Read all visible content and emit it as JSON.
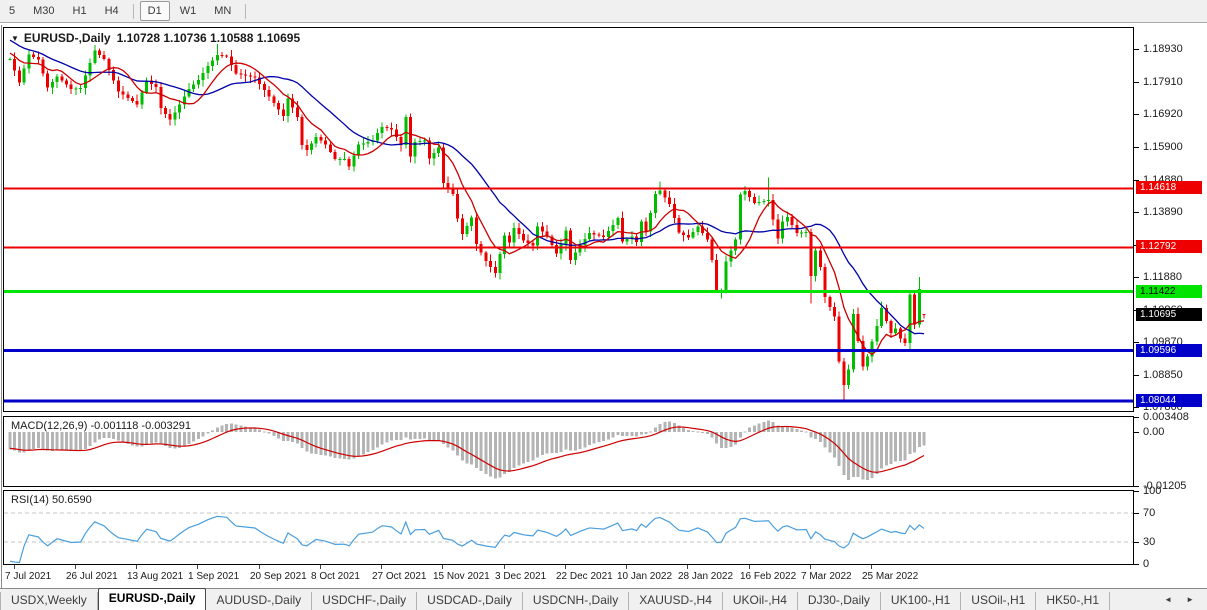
{
  "toolbar": {
    "items": [
      "5",
      "M30",
      "H1",
      "H4",
      "|",
      "D1",
      "W1",
      "MN",
      "|"
    ],
    "active": "D1"
  },
  "chart": {
    "title": {
      "dropdown_icon": "▼",
      "symbol": "EURUSD-,Daily",
      "quote": "1.10728 1.10736 1.10588 1.10695"
    },
    "colors": {
      "bull": "#00bd00",
      "bear": "#ee0000",
      "ma_fast": "#cc0000",
      "ma_slow": "#0000a8"
    },
    "ylim": [
      1.0773,
      1.1958
    ],
    "y_axis": {
      "ticks": [
        "1.18930",
        "1.17910",
        "1.16920",
        "1.15900",
        "1.14880",
        "1.13890",
        "1.12870",
        "1.11880",
        "1.10860",
        "1.09870",
        "1.08850",
        "1.07860"
      ]
    },
    "levels": [
      {
        "price": 1.14618,
        "label": "1.14618",
        "color": "#ee0000",
        "text_color": "#ffffff",
        "thickness": 2
      },
      {
        "price": 1.12792,
        "label": "1.12792",
        "color": "#ee0000",
        "text_color": "#ffffff",
        "thickness": 2
      },
      {
        "price": 1.11422,
        "label": "1.11422",
        "color": "#00e400",
        "text_color": "#000000",
        "thickness": 3
      },
      {
        "price": 1.09596,
        "label": "1.09596",
        "color": "#0000c8",
        "text_color": "#ffffff",
        "thickness": 3
      },
      {
        "price": 1.08044,
        "label": "1.08044",
        "color": "#0000c8",
        "text_color": "#ffffff",
        "thickness": 3
      }
    ],
    "current_price": {
      "value": 1.10695,
      "label": "1.10695",
      "bg": "#000000",
      "text_color": "#ffffff"
    },
    "ma": {
      "fast_period": 8,
      "slow_period": 20
    },
    "candles": {
      "count": 195,
      "warmup": {
        "bars": 30,
        "start_price": 1.206
      },
      "close_anchors": [
        [
          0,
          1.1862
        ],
        [
          2,
          1.179
        ],
        [
          4,
          1.1876
        ],
        [
          6,
          1.1861
        ],
        [
          8,
          1.1774
        ],
        [
          10,
          1.1808
        ],
        [
          13,
          1.177
        ],
        [
          15,
          1.1772
        ],
        [
          18,
          1.1888
        ],
        [
          20,
          1.1862
        ],
        [
          23,
          1.1762
        ],
        [
          27,
          1.1722
        ],
        [
          29,
          1.1795
        ],
        [
          31,
          1.1776
        ],
        [
          32,
          1.171
        ],
        [
          34,
          1.1675
        ],
        [
          35,
          1.1697
        ],
        [
          38,
          1.177
        ],
        [
          40,
          1.1797
        ],
        [
          42,
          1.184
        ],
        [
          44,
          1.1875
        ],
        [
          46,
          1.187
        ],
        [
          48,
          1.1817
        ],
        [
          52,
          1.1805
        ],
        [
          54,
          1.1766
        ],
        [
          56,
          1.1726
        ],
        [
          58,
          1.1686
        ],
        [
          59,
          1.174
        ],
        [
          61,
          1.1683
        ],
        [
          62,
          1.1596
        ],
        [
          63,
          1.158
        ],
        [
          65,
          1.1621
        ],
        [
          67,
          1.1598
        ],
        [
          69,
          1.1552
        ],
        [
          71,
          1.1553
        ],
        [
          72,
          1.153
        ],
        [
          74,
          1.1597
        ],
        [
          77,
          1.161
        ],
        [
          78,
          1.1633
        ],
        [
          79,
          1.1652
        ],
        [
          81,
          1.1644
        ],
        [
          83,
          1.1596
        ],
        [
          84,
          1.1682
        ],
        [
          85,
          1.156
        ],
        [
          86,
          1.1606
        ],
        [
          88,
          1.161
        ],
        [
          89,
          1.1554
        ],
        [
          91,
          1.1589
        ],
        [
          92,
          1.1478
        ],
        [
          94,
          1.1445
        ],
        [
          95,
          1.1368
        ],
        [
          96,
          1.132
        ],
        [
          98,
          1.1372
        ],
        [
          99,
          1.1289
        ],
        [
          101,
          1.1237
        ],
        [
          103,
          1.12
        ],
        [
          105,
          1.1316
        ],
        [
          106,
          1.1294
        ],
        [
          107,
          1.1339
        ],
        [
          109,
          1.1301
        ],
        [
          111,
          1.1285
        ],
        [
          112,
          1.1344
        ],
        [
          114,
          1.1313
        ],
        [
          116,
          1.126
        ],
        [
          117,
          1.1288
        ],
        [
          118,
          1.1331
        ],
        [
          119,
          1.124
        ],
        [
          121,
          1.1286
        ],
        [
          123,
          1.1324
        ],
        [
          126,
          1.1311
        ],
        [
          128,
          1.1348
        ],
        [
          129,
          1.137
        ],
        [
          130,
          1.1297
        ],
        [
          132,
          1.1313
        ],
        [
          133,
          1.1296
        ],
        [
          134,
          1.136
        ],
        [
          135,
          1.1328
        ],
        [
          137,
          1.1444
        ],
        [
          138,
          1.1455
        ],
        [
          140,
          1.1413
        ],
        [
          142,
          1.1326
        ],
        [
          144,
          1.131
        ],
        [
          146,
          1.1344
        ],
        [
          148,
          1.1303
        ],
        [
          149,
          1.124
        ],
        [
          150,
          1.1144
        ],
        [
          151,
          1.1148
        ],
        [
          152,
          1.1235
        ],
        [
          154,
          1.1303
        ],
        [
          155,
          1.1443
        ],
        [
          156,
          1.1453
        ],
        [
          158,
          1.1417
        ],
        [
          161,
          1.1426
        ],
        [
          163,
          1.1306
        ],
        [
          164,
          1.1359
        ],
        [
          165,
          1.1374
        ],
        [
          167,
          1.1323
        ],
        [
          169,
          1.1327
        ],
        [
          170,
          1.119
        ],
        [
          171,
          1.127
        ],
        [
          172,
          1.1219
        ],
        [
          173,
          1.1125
        ],
        [
          175,
          1.1066
        ],
        [
          176,
          1.0926
        ],
        [
          177,
          1.0854
        ],
        [
          178,
          1.0901
        ],
        [
          179,
          1.1073
        ],
        [
          180,
          1.0989
        ],
        [
          181,
          1.091
        ],
        [
          182,
          1.0941
        ],
        [
          184,
          1.1036
        ],
        [
          185,
          1.1091
        ],
        [
          186,
          1.1051
        ],
        [
          187,
          1.1015
        ],
        [
          188,
          1.1029
        ],
        [
          189,
          1.0997
        ],
        [
          190,
          1.0983
        ],
        [
          191,
          1.1133
        ],
        [
          192,
          1.104
        ],
        [
          193,
          1.115
        ],
        [
          194,
          1.10695
        ]
      ],
      "overrides": [
        {
          "i": 18,
          "high": 1.1905
        },
        {
          "i": 44,
          "high": 1.1909
        },
        {
          "i": 103,
          "low": 1.1186
        },
        {
          "i": 138,
          "high": 1.1483
        },
        {
          "i": 151,
          "low": 1.1121
        },
        {
          "i": 161,
          "high": 1.1495
        },
        {
          "i": 170,
          "low": 1.1106
        },
        {
          "i": 177,
          "low": 1.0806
        },
        {
          "i": 193,
          "high": 1.1188
        },
        {
          "i": 194,
          "open": 1.10728,
          "high": 1.10736,
          "low": 1.10588
        }
      ]
    }
  },
  "macd": {
    "label": "MACD(12,26,9) -0.001118 -0.003291",
    "params": {
      "fast": 12,
      "slow": 26,
      "signal": 9
    },
    "last_main": -0.001118,
    "last_signal": -0.003291,
    "axis_labels": [
      {
        "text": "0.003408",
        "value": 0.003408
      },
      {
        "text": "0.00",
        "value": 0
      },
      {
        "text": "-0.01205",
        "value": -0.01205
      }
    ],
    "ylim": [
      -0.01205,
      0.003408
    ],
    "colors": {
      "histogram": "#b4b4b4",
      "signal": "#cc0000"
    }
  },
  "rsi": {
    "label": "RSI(14) 50.6590",
    "period": 14,
    "value": 50.659,
    "levels": [
      70,
      30
    ],
    "axis_labels": [
      {
        "text": "100",
        "value": 100
      },
      {
        "text": "70",
        "value": 70
      },
      {
        "text": "30",
        "value": 30
      },
      {
        "text": "0",
        "value": 0
      }
    ],
    "ylim": [
      0,
      100
    ],
    "colors": {
      "line": "#4a9ede",
      "level": "#c6c6c6"
    }
  },
  "x_axis": {
    "labels": [
      "7 Jul 2021",
      "26 Jul 2021",
      "13 Aug 2021",
      "1 Sep 2021",
      "20 Sep 2021",
      "8 Oct 2021",
      "27 Oct 2021",
      "15 Nov 2021",
      "3 Dec 2021",
      "22 Dec 2021",
      "10 Jan 2022",
      "28 Jan 2022",
      "16 Feb 2022",
      "7 Mar 2022",
      "25 Mar 2022"
    ]
  },
  "tabs": {
    "items": [
      {
        "label": "USDX,Weekly"
      },
      {
        "label": "EURUSD-,Daily",
        "active": true
      },
      {
        "label": "AUDUSD-,Daily"
      },
      {
        "label": "USDCHF-,Daily"
      },
      {
        "label": "USDCAD-,Daily"
      },
      {
        "label": "USDCNH-,Daily"
      },
      {
        "label": "XAUUSD-,H4"
      },
      {
        "label": "UKOil-,H4"
      },
      {
        "label": "DJ30-,Daily"
      },
      {
        "label": "UK100-,H1"
      },
      {
        "label": "USOil-,H1"
      },
      {
        "label": "HK50-,H1"
      }
    ],
    "scroll_left": "◄",
    "scroll_right": "►"
  }
}
